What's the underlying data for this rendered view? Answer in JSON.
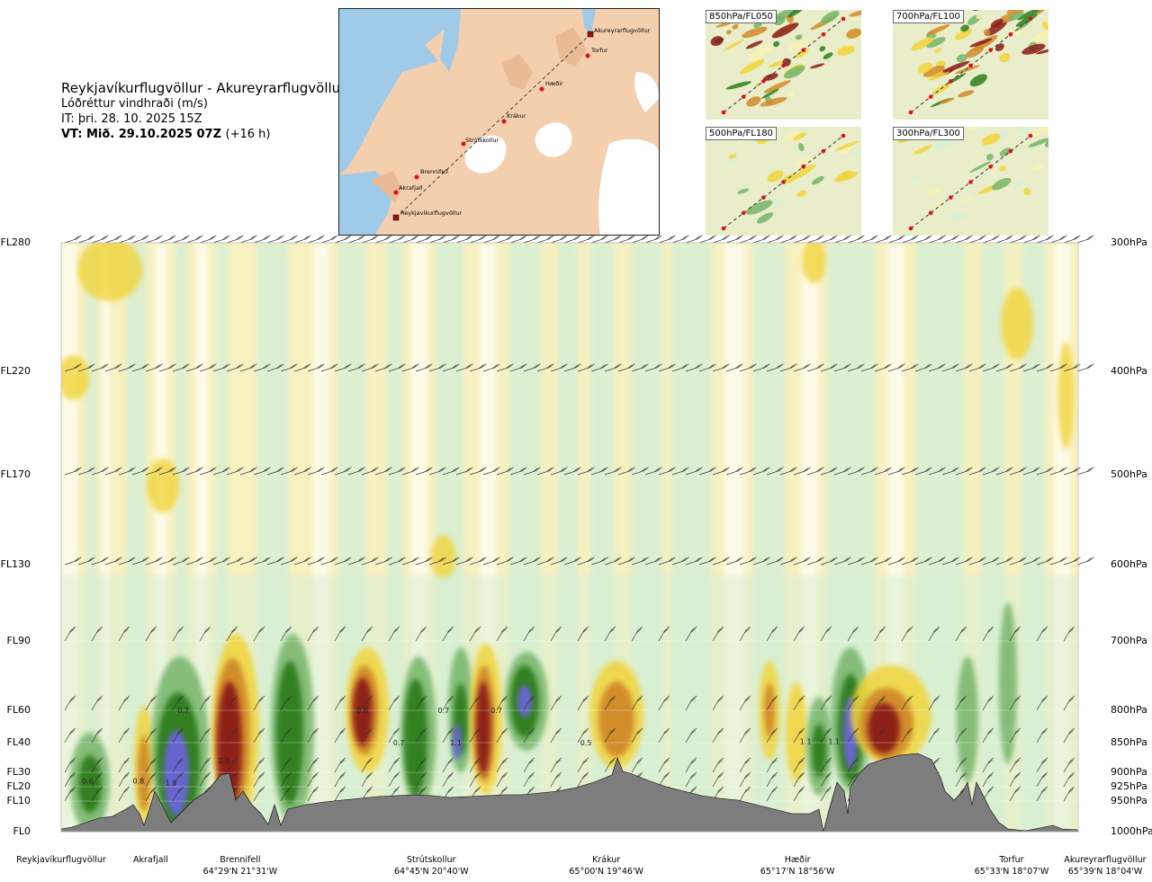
{
  "title": {
    "route": "Reykjavíkurflugvöllur - Akureyrarflugvöllur",
    "parameter": "Lóðréttur vindhraði (m/s)",
    "issue_time": "IT: þri. 28. 10. 2025 15Z",
    "valid_time": "VT: Mið. 29.10.2025 07Z",
    "lead": "(+16 h)"
  },
  "map": {
    "place_labels": [
      "Akureyrarflugvöllur",
      "Torfur",
      "Hæðir",
      "Krákur",
      "Strútskollur",
      "Brennifell",
      "Akrafjall",
      "Reykjavíkurflugvöllur"
    ],
    "colors": {
      "land": "#f3cfae",
      "sea": "#9fcbe8",
      "ice": "#ffffff",
      "route": "#444444",
      "waypoint": "#e0101a"
    }
  },
  "mini_maps": [
    {
      "label": "850hPa/FL050"
    },
    {
      "label": "700hPa/FL100"
    },
    {
      "label": "500hPa/FL180"
    },
    {
      "label": "300hPa/FL300"
    }
  ],
  "chart_data": {
    "type": "heatmap",
    "title": "Lóðréttur vindhraði (m/s)",
    "left_axis_labels": [
      "FL280",
      "FL220",
      "FL170",
      "FL130",
      "FL90",
      "FL60",
      "FL40",
      "FL30",
      "FL20",
      "FL10",
      "FL0"
    ],
    "right_axis_labels": [
      "300hPa",
      "400hPa",
      "500hPa",
      "600hPa",
      "700hPa",
      "800hPa",
      "850hPa",
      "900hPa",
      "925hPa",
      "950hPa",
      "1000hPa"
    ],
    "pressure_levels_hpa": [
      300,
      400,
      500,
      600,
      700,
      800,
      850,
      900,
      925,
      950,
      1000
    ],
    "x_range_km": [
      0,
      250
    ],
    "waypoints": [
      {
        "name": "Reykjavíkurflugvöllur",
        "coord": "",
        "km": 0
      },
      {
        "name": "Akrafjall",
        "coord": "",
        "km": 22
      },
      {
        "name": "Brennifell",
        "coord": "64°29'N 21°31'W",
        "km": 44
      },
      {
        "name": "Strútskollur",
        "coord": "64°45'N 20°40'W",
        "km": 91
      },
      {
        "name": "Krákur",
        "coord": "65°00'N 19°46'W",
        "km": 134
      },
      {
        "name": "Hæðir",
        "coord": "65°17'N 18°56'W",
        "km": 181
      },
      {
        "name": "Torfur",
        "coord": "65°33'N 18°07'W",
        "km": 231
      },
      {
        "name": "Akureyrarflugvöllur",
        "coord": "65°39'N 18°04'W",
        "km": 250
      }
    ],
    "cells": [
      {
        "km": 6.5,
        "p": 915,
        "value": 0.6
      },
      {
        "km": 19,
        "p": 915,
        "value": 0.8
      },
      {
        "km": 27,
        "p": 918,
        "value": 1.9
      },
      {
        "km": 30,
        "p": 800,
        "value": 0.7
      },
      {
        "km": 40,
        "p": 880,
        "value": 2.0
      },
      {
        "km": 74,
        "p": 800,
        "value": 0.6
      },
      {
        "km": 83,
        "p": 850,
        "value": 0.7
      },
      {
        "km": 94,
        "p": 800,
        "value": 0.7
      },
      {
        "km": 97,
        "p": 850,
        "value": 1.1
      },
      {
        "km": 107,
        "p": 800,
        "value": 0.7
      },
      {
        "km": 129,
        "p": 850,
        "value": 0.5
      },
      {
        "km": 183,
        "p": 848,
        "value": 1.1
      },
      {
        "km": 190,
        "p": 848,
        "value": 1.1
      }
    ],
    "color_scale": {
      "strong_down": "#2e7d1f",
      "moderate_down": "#74b56a",
      "weak_down": "#d8efd4",
      "neutral": "#ffffff",
      "weak_up": "#f6f2b6",
      "moderate_up": "#f1d43a",
      "strong_up": "#d18a2a",
      "very_strong_up": "#8b1a16",
      "extreme_down": "#6b63d9"
    },
    "terrain_color": "#7d7d7d"
  }
}
